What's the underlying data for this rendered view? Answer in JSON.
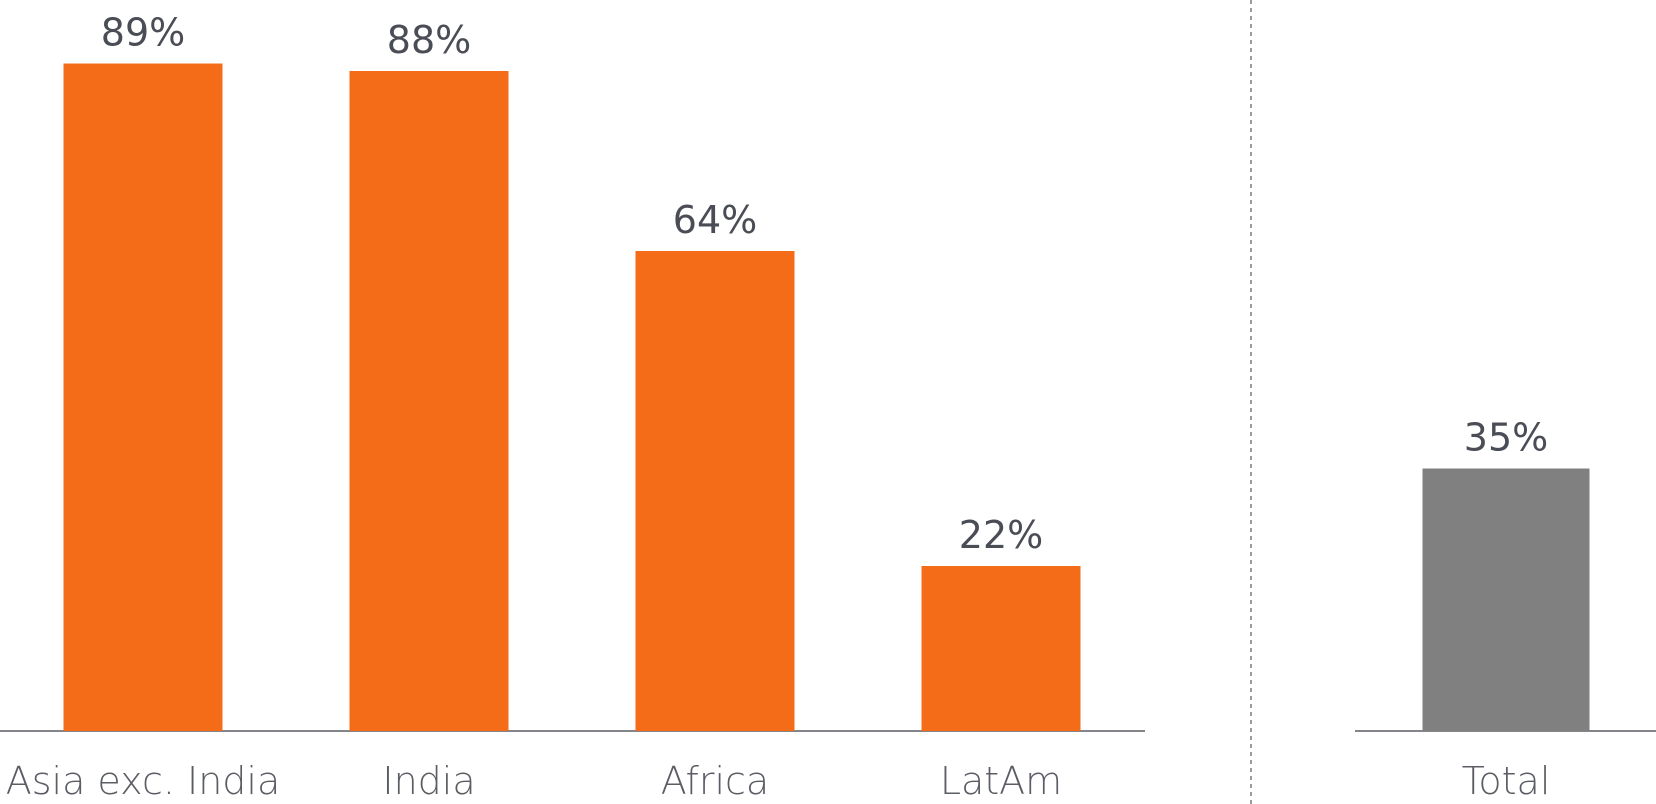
{
  "colors": {
    "highlight_bar": "#f56c18",
    "total_bar": "#808080",
    "axis_line": "#5a5d63",
    "divider": "#7a7a7a",
    "value_text": "#4a4d55",
    "category_text": "#5a5d63"
  },
  "chart_data": [
    {
      "type": "bar",
      "categories": [
        "Asia exc. India",
        "India",
        "Africa",
        "LatAm"
      ],
      "values": [
        89,
        88,
        64,
        22
      ],
      "value_labels": [
        "89%",
        "88%",
        "64%",
        "22%"
      ],
      "ylim": [
        0,
        100
      ],
      "grid": false,
      "color": "#f56c18"
    },
    {
      "type": "bar",
      "categories": [
        "Total"
      ],
      "values": [
        35
      ],
      "value_labels": [
        "35%"
      ],
      "ylim": [
        0,
        100
      ],
      "grid": false,
      "color": "#808080"
    }
  ]
}
